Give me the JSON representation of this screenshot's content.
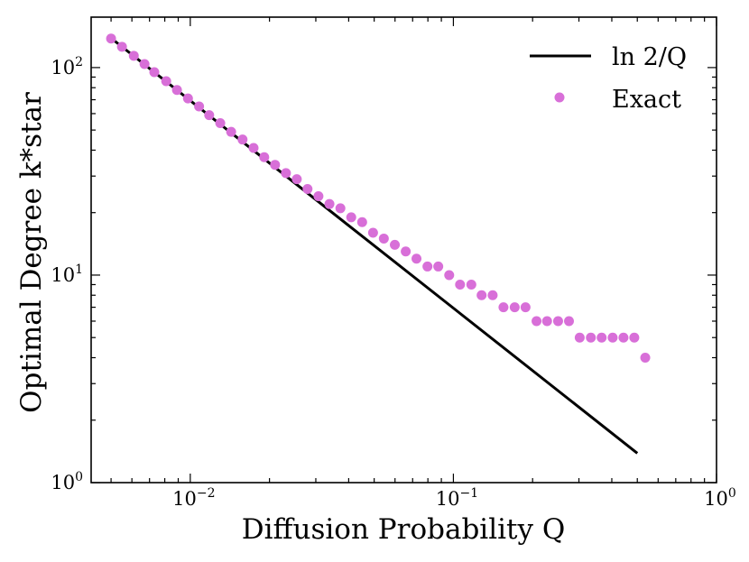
{
  "chart_data": {
    "type": "scatter",
    "title": "",
    "xlabel": "Diffusion Probability Q",
    "ylabel": "Optimal Degree k*star",
    "xscale": "log",
    "yscale": "log",
    "xlim": [
      0.0042,
      1.0
    ],
    "ylim": [
      1.0,
      175
    ],
    "x_ticks": [
      {
        "value": 0.01,
        "base": "10",
        "exp": "−2"
      },
      {
        "value": 0.1,
        "base": "10",
        "exp": "−1"
      },
      {
        "value": 1,
        "base": "10",
        "exp": "0"
      }
    ],
    "y_ticks": [
      {
        "value": 1,
        "base": "10",
        "exp": "0"
      },
      {
        "value": 10,
        "base": "10",
        "exp": "1"
      },
      {
        "value": 100,
        "base": "10",
        "exp": "2"
      }
    ],
    "legend_position": "top-right",
    "series": [
      {
        "name": "ln 2/Q",
        "label_text": "ln 2/Q",
        "kind": "line",
        "color": "#000000",
        "x": [
          0.005,
          0.5
        ],
        "y": [
          138.63,
          1.386
        ]
      },
      {
        "name": "Exact",
        "label_text": "Exact",
        "kind": "scatter",
        "color": "#d86fd8",
        "x": [
          0.005,
          0.0055,
          0.0061,
          0.0067,
          0.0073,
          0.0081,
          0.0089,
          0.0098,
          0.0108,
          0.0118,
          0.013,
          0.0143,
          0.0158,
          0.0174,
          0.0191,
          0.021,
          0.0231,
          0.0254,
          0.0279,
          0.0307,
          0.0338,
          0.0372,
          0.0409,
          0.045,
          0.0495,
          0.0544,
          0.0599,
          0.0659,
          0.0724,
          0.0797,
          0.0876,
          0.0964,
          0.106,
          0.117,
          0.128,
          0.141,
          0.155,
          0.171,
          0.188,
          0.207,
          0.227,
          0.25,
          0.275,
          0.302,
          0.333,
          0.366,
          0.403,
          0.443,
          0.487,
          0.536
        ],
        "y": [
          138,
          126,
          114,
          104,
          95,
          86,
          78,
          71,
          65,
          59,
          54,
          49,
          45,
          41,
          37,
          34,
          31,
          29,
          26,
          24,
          22,
          21,
          19,
          18,
          16,
          15,
          14,
          13,
          12,
          11,
          11,
          10,
          9,
          9,
          8,
          8,
          7,
          7,
          7,
          6,
          6,
          6,
          6,
          5,
          5,
          5,
          5,
          5,
          5,
          4
        ]
      }
    ]
  }
}
